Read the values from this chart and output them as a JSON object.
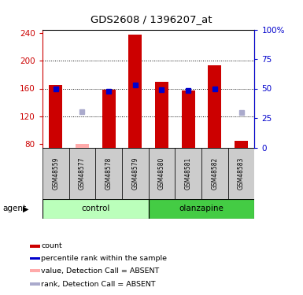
{
  "title": "GDS2608 / 1396207_at",
  "samples": [
    "GSM48559",
    "GSM48577",
    "GSM48578",
    "GSM48579",
    "GSM48580",
    "GSM48581",
    "GSM48582",
    "GSM48583"
  ],
  "count_values": [
    165,
    null,
    158,
    238,
    170,
    157,
    194,
    85
  ],
  "count_absent": [
    null,
    80,
    null,
    null,
    null,
    null,
    null,
    null
  ],
  "rank_values": [
    160,
    null,
    156,
    165,
    158,
    157,
    160,
    null
  ],
  "rank_absent": [
    null,
    127,
    null,
    null,
    null,
    null,
    null,
    126
  ],
  "ylim_left": [
    75,
    245
  ],
  "ylim_right": [
    0,
    100
  ],
  "yticks_left": [
    80,
    120,
    160,
    200,
    240
  ],
  "yticks_right": [
    0,
    25,
    50,
    75,
    100
  ],
  "bar_color": "#cc0000",
  "bar_absent_color": "#ffaaaa",
  "rank_color": "#0000cc",
  "rank_absent_color": "#aaaacc",
  "control_bg_light": "#bbffbb",
  "control_bg_dark": "#55dd55",
  "olanzapine_bg": "#44cc44",
  "sample_bg": "#cccccc",
  "legend_items": [
    {
      "label": "count",
      "color": "#cc0000"
    },
    {
      "label": "percentile rank within the sample",
      "color": "#0000cc"
    },
    {
      "label": "value, Detection Call = ABSENT",
      "color": "#ffaaaa"
    },
    {
      "label": "rank, Detection Call = ABSENT",
      "color": "#aaaacc"
    }
  ],
  "bar_width": 0.5
}
